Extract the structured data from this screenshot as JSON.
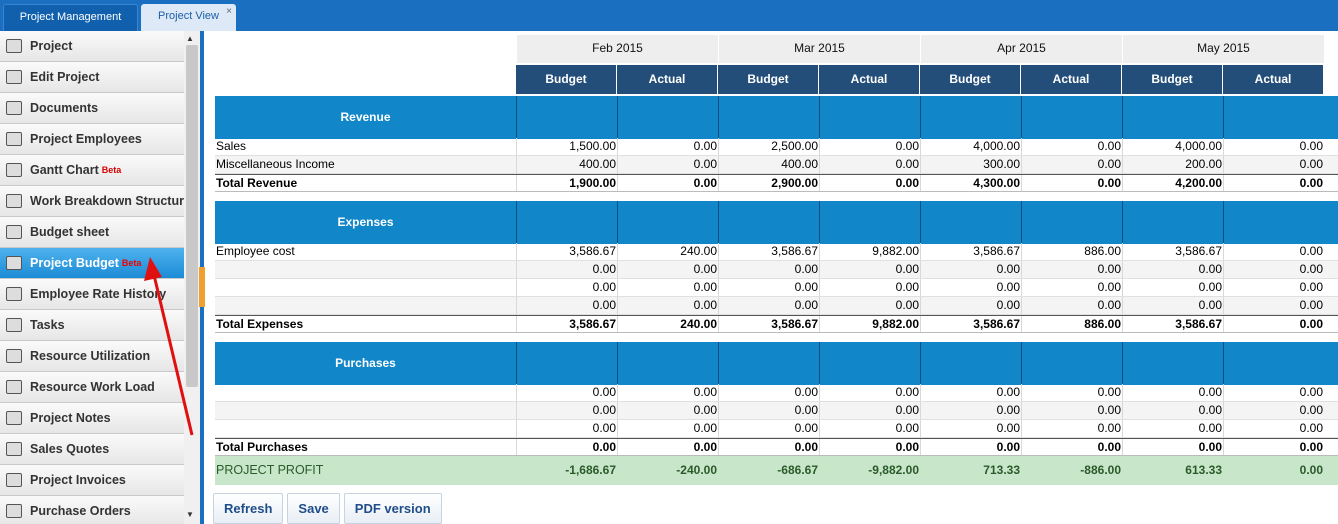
{
  "tabs": [
    {
      "label": "Project Management"
    },
    {
      "label": "Project View",
      "close": "×"
    }
  ],
  "sidebar": {
    "items": [
      {
        "label": "Project",
        "icon": "project-icon"
      },
      {
        "label": "Edit Project",
        "icon": "edit-icon"
      },
      {
        "label": "Documents",
        "icon": "documents-icon"
      },
      {
        "label": "Project Employees",
        "icon": "employees-icon"
      },
      {
        "label": "Gantt Chart",
        "beta": "Beta",
        "icon": "gantt-icon"
      },
      {
        "label": "Work Breakdown Structure",
        "icon": "wbs-icon"
      },
      {
        "label": "Budget sheet",
        "icon": "budget-icon"
      },
      {
        "label": "Project Budget",
        "beta": "Beta",
        "icon": "project-budget-icon",
        "active": true
      },
      {
        "label": "Employee Rate History",
        "icon": "rate-history-icon"
      },
      {
        "label": "Tasks",
        "icon": "tasks-icon"
      },
      {
        "label": "Resource Utilization",
        "icon": "utilization-icon"
      },
      {
        "label": "Resource Work Load",
        "icon": "workload-icon"
      },
      {
        "label": "Project Notes",
        "icon": "notes-icon"
      },
      {
        "label": "Sales Quotes",
        "icon": "quotes-icon"
      },
      {
        "label": "Project Invoices",
        "icon": "invoices-icon"
      },
      {
        "label": "Purchase Orders",
        "icon": "orders-icon"
      }
    ]
  },
  "months": [
    "Feb 2015",
    "Mar 2015",
    "Apr 2015",
    "May 2015"
  ],
  "col_labels": [
    "Budget",
    "Actual",
    "Budget",
    "Actual",
    "Budget",
    "Actual",
    "Budget",
    "Actual"
  ],
  "sections": {
    "revenue": "Revenue",
    "expenses": "Expenses",
    "purchases": "Purchases"
  },
  "revenue_rows": [
    {
      "label": "Sales",
      "values": [
        "1,500.00",
        "0.00",
        "2,500.00",
        "0.00",
        "4,000.00",
        "0.00",
        "4,000.00",
        "0.00"
      ]
    },
    {
      "label": "Miscellaneous Income",
      "values": [
        "400.00",
        "0.00",
        "400.00",
        "0.00",
        "300.00",
        "0.00",
        "200.00",
        "0.00"
      ]
    },
    {
      "label": "Total Revenue",
      "values": [
        "1,900.00",
        "0.00",
        "2,900.00",
        "0.00",
        "4,300.00",
        "0.00",
        "4,200.00",
        "0.00"
      ]
    }
  ],
  "expense_rows": [
    {
      "label": "Employee cost",
      "values": [
        "3,586.67",
        "240.00",
        "3,586.67",
        "9,882.00",
        "3,586.67",
        "886.00",
        "3,586.67",
        "0.00"
      ]
    },
    {
      "label": "",
      "values": [
        "0.00",
        "0.00",
        "0.00",
        "0.00",
        "0.00",
        "0.00",
        "0.00",
        "0.00"
      ]
    },
    {
      "label": "",
      "values": [
        "0.00",
        "0.00",
        "0.00",
        "0.00",
        "0.00",
        "0.00",
        "0.00",
        "0.00"
      ]
    },
    {
      "label": "",
      "values": [
        "0.00",
        "0.00",
        "0.00",
        "0.00",
        "0.00",
        "0.00",
        "0.00",
        "0.00"
      ]
    },
    {
      "label": "Total Expenses",
      "values": [
        "3,586.67",
        "240.00",
        "3,586.67",
        "9,882.00",
        "3,586.67",
        "886.00",
        "3,586.67",
        "0.00"
      ]
    }
  ],
  "purchase_rows": [
    {
      "label": "",
      "values": [
        "0.00",
        "0.00",
        "0.00",
        "0.00",
        "0.00",
        "0.00",
        "0.00",
        "0.00"
      ]
    },
    {
      "label": "",
      "values": [
        "0.00",
        "0.00",
        "0.00",
        "0.00",
        "0.00",
        "0.00",
        "0.00",
        "0.00"
      ]
    },
    {
      "label": "",
      "values": [
        "0.00",
        "0.00",
        "0.00",
        "0.00",
        "0.00",
        "0.00",
        "0.00",
        "0.00"
      ]
    },
    {
      "label": "Total Purchases",
      "values": [
        "0.00",
        "0.00",
        "0.00",
        "0.00",
        "0.00",
        "0.00",
        "0.00",
        "0.00"
      ]
    }
  ],
  "profit": {
    "label": "PROJECT PROFIT",
    "values": [
      "-1,686.67",
      "-240.00",
      "-686.67",
      "-9,882.00",
      "713.33",
      "-886.00",
      "613.33",
      "0.00"
    ]
  },
  "buttons": {
    "refresh": "Refresh",
    "save": "Save",
    "pdf": "PDF version"
  }
}
